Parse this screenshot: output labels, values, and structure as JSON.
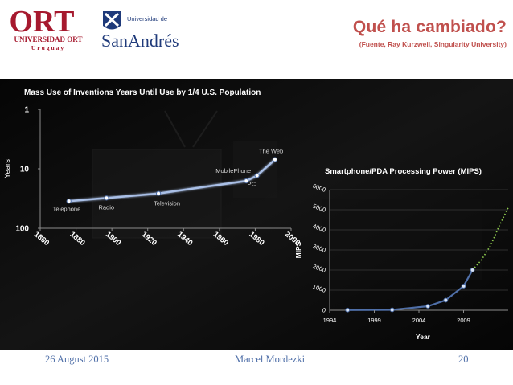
{
  "header": {
    "title": "Qué ha cambiado?",
    "subtitle": "(Fuente, Ray Kurzweil, Singularity University)",
    "logo_ort": {
      "name": "ORT",
      "line1": "UNIVERSIDAD ORT",
      "line2": "Uruguay",
      "color": "#a6192e"
    },
    "logo_sanandres": {
      "small": "Universidad de",
      "name": "SanAndrés",
      "color": "#1f3a7a"
    }
  },
  "footer": {
    "date": "26 August 2015",
    "author": "Marcel Mordezki",
    "page": "20"
  },
  "chart_data": [
    {
      "type": "line",
      "title": "Mass Use of Inventions Years Until Use by 1/4 U.S. Population",
      "ylabel": "Years",
      "xlabel": "",
      "y_scale": "log",
      "y_reversed": true,
      "ylim": [
        1,
        100
      ],
      "xlim": [
        1860,
        2000
      ],
      "x_ticks": [
        1860,
        1880,
        1900,
        1920,
        1940,
        1960,
        1980,
        2000
      ],
      "y_ticks": [
        1,
        10,
        100
      ],
      "x_tick_labels": [
        "1860",
        "1880",
        "1900",
        "1920",
        "1940",
        "1960",
        "1980",
        "2000"
      ],
      "y_tick_labels": [
        "1",
        "10",
        "100"
      ],
      "points": [
        {
          "x": 1876,
          "y": 35,
          "label": "Telephone"
        },
        {
          "x": 1897,
          "y": 31,
          "label": "Radio"
        },
        {
          "x": 1926,
          "y": 26,
          "label": "Television"
        },
        {
          "x": 1975,
          "y": 16,
          "label": "MobilePhone"
        },
        {
          "x": 1981,
          "y": 13,
          "label": "PC"
        },
        {
          "x": 1991,
          "y": 7,
          "label": "The Web"
        }
      ],
      "line_color": "#a9bfe6",
      "grid": false
    },
    {
      "type": "line",
      "title": "Smartphone/PDA Processing Power (MIPS)",
      "xlabel": "Year",
      "ylabel": "MIPS",
      "ylim": [
        0,
        6000
      ],
      "xlim": [
        1994,
        2014
      ],
      "x_ticks": [
        1994,
        1999,
        2004,
        2009
      ],
      "y_ticks": [
        0,
        1000,
        2000,
        3000,
        4000,
        5000,
        6000
      ],
      "x_tick_labels": [
        "1994",
        "1999",
        "2004",
        "2009"
      ],
      "y_tick_labels": [
        "0",
        "1000",
        "2000",
        "3000",
        "4000",
        "5000",
        "6000"
      ],
      "series": [
        {
          "values_x": [
            1996,
            2001,
            2005,
            2007,
            2009,
            2010
          ],
          "values_y": [
            10,
            20,
            200,
            500,
            1200,
            2000
          ],
          "color": "#4f6fa8"
        }
      ],
      "projection": {
        "values_x": [
          2010,
          2011,
          2012,
          2013,
          2014
        ],
        "values_y": [
          2000,
          2500,
          3200,
          4200,
          5100
        ],
        "color": "#92d050",
        "style": "dotted"
      },
      "grid": true
    }
  ]
}
